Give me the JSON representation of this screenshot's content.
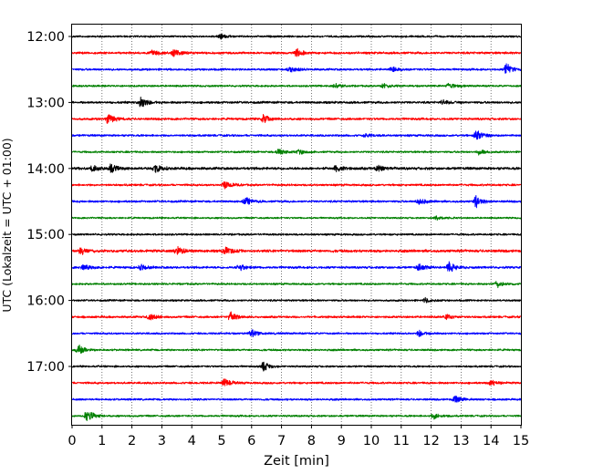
{
  "chart_data": {
    "type": "line",
    "title": "",
    "xlabel": "Zeit  [min]",
    "ylabel": "UTC (Lokalzeit = UTC + 01:00)",
    "xlim": [
      0,
      15
    ],
    "x_ticks": [
      0,
      1,
      2,
      3,
      4,
      5,
      6,
      7,
      8,
      9,
      10,
      11,
      12,
      13,
      14,
      15
    ],
    "x_tick_labels": [
      "0",
      "1",
      "2",
      "3",
      "4",
      "5",
      "6",
      "7",
      "8",
      "9",
      "10",
      "11",
      "12",
      "13",
      "14",
      "15"
    ],
    "y_tick_labels": [
      "12:00",
      "13:00",
      "14:00",
      "15:00",
      "16:00",
      "17:00"
    ],
    "y_tick_rows": [
      0,
      4,
      8,
      12,
      16,
      20
    ],
    "grid": "vertical dotted at each minute",
    "trace_interval_minutes": 15,
    "colors": [
      "#000000",
      "#ff0000",
      "#0000ff",
      "#008000"
    ],
    "series": [
      {
        "name": "12:00",
        "color": "#000000",
        "amp": 1.0,
        "events": [
          {
            "t": 4.95,
            "a": 1.0
          }
        ]
      },
      {
        "name": "12:15",
        "color": "#ff0000",
        "amp": 1.2,
        "events": [
          {
            "t": 2.7,
            "a": 1.2
          },
          {
            "t": 3.4,
            "a": 1.8
          },
          {
            "t": 7.5,
            "a": 1.6
          }
        ]
      },
      {
        "name": "12:30",
        "color": "#0000ff",
        "amp": 1.1,
        "events": [
          {
            "t": 7.3,
            "a": 1.2
          },
          {
            "t": 10.7,
            "a": 1.1
          },
          {
            "t": 14.5,
            "a": 2.6
          }
        ]
      },
      {
        "name": "12:45",
        "color": "#008000",
        "amp": 1.0,
        "events": [
          {
            "t": 8.8,
            "a": 0.9
          },
          {
            "t": 10.4,
            "a": 1.0
          },
          {
            "t": 12.6,
            "a": 1.1
          }
        ]
      },
      {
        "name": "13:00",
        "color": "#000000",
        "amp": 1.2,
        "events": [
          {
            "t": 2.3,
            "a": 2.4
          },
          {
            "t": 12.4,
            "a": 1.0
          }
        ]
      },
      {
        "name": "13:15",
        "color": "#ff0000",
        "amp": 1.2,
        "events": [
          {
            "t": 1.2,
            "a": 1.9
          },
          {
            "t": 6.4,
            "a": 1.6
          }
        ]
      },
      {
        "name": "13:30",
        "color": "#0000ff",
        "amp": 1.1,
        "events": [
          {
            "t": 13.5,
            "a": 2.5
          },
          {
            "t": 9.8,
            "a": 0.7
          }
        ]
      },
      {
        "name": "13:45",
        "color": "#008000",
        "amp": 1.0,
        "events": [
          {
            "t": 6.9,
            "a": 1.4
          },
          {
            "t": 7.6,
            "a": 0.9
          },
          {
            "t": 13.6,
            "a": 0.9
          }
        ]
      },
      {
        "name": "14:00",
        "color": "#000000",
        "amp": 1.4,
        "events": [
          {
            "t": 0.7,
            "a": 1.3
          },
          {
            "t": 1.3,
            "a": 1.5
          },
          {
            "t": 2.8,
            "a": 1.6
          },
          {
            "t": 8.8,
            "a": 1.2
          },
          {
            "t": 10.2,
            "a": 1.4
          }
        ]
      },
      {
        "name": "14:15",
        "color": "#ff0000",
        "amp": 1.1,
        "events": [
          {
            "t": 5.1,
            "a": 1.7
          }
        ]
      },
      {
        "name": "14:30",
        "color": "#0000ff",
        "amp": 1.1,
        "events": [
          {
            "t": 5.8,
            "a": 1.5
          },
          {
            "t": 11.6,
            "a": 1.3
          },
          {
            "t": 13.5,
            "a": 2.2
          }
        ]
      },
      {
        "name": "14:45",
        "color": "#008000",
        "amp": 0.9,
        "events": [
          {
            "t": 12.2,
            "a": 1.0
          }
        ]
      },
      {
        "name": "15:00",
        "color": "#000000",
        "amp": 1.0,
        "events": []
      },
      {
        "name": "15:15",
        "color": "#ff0000",
        "amp": 1.4,
        "events": [
          {
            "t": 0.3,
            "a": 1.5
          },
          {
            "t": 3.5,
            "a": 1.9
          },
          {
            "t": 5.1,
            "a": 1.8
          }
        ]
      },
      {
        "name": "15:30",
        "color": "#0000ff",
        "amp": 1.2,
        "events": [
          {
            "t": 0.4,
            "a": 1.3
          },
          {
            "t": 2.3,
            "a": 1.1
          },
          {
            "t": 5.6,
            "a": 1.4
          },
          {
            "t": 11.6,
            "a": 1.5
          },
          {
            "t": 12.6,
            "a": 2.0
          }
        ]
      },
      {
        "name": "15:45",
        "color": "#008000",
        "amp": 1.0,
        "events": [
          {
            "t": 14.2,
            "a": 1.2
          }
        ]
      },
      {
        "name": "16:00",
        "color": "#000000",
        "amp": 1.0,
        "events": [
          {
            "t": 11.8,
            "a": 0.9
          }
        ]
      },
      {
        "name": "16:15",
        "color": "#ff0000",
        "amp": 1.1,
        "events": [
          {
            "t": 2.6,
            "a": 1.7
          },
          {
            "t": 5.3,
            "a": 2.0
          },
          {
            "t": 12.5,
            "a": 1.0
          }
        ]
      },
      {
        "name": "16:30",
        "color": "#0000ff",
        "amp": 1.0,
        "events": [
          {
            "t": 6.0,
            "a": 1.4
          },
          {
            "t": 11.6,
            "a": 1.3
          }
        ]
      },
      {
        "name": "16:45",
        "color": "#008000",
        "amp": 1.0,
        "events": [
          {
            "t": 0.2,
            "a": 2.1
          }
        ]
      },
      {
        "name": "17:00",
        "color": "#000000",
        "amp": 1.0,
        "events": [
          {
            "t": 6.4,
            "a": 1.8
          }
        ]
      },
      {
        "name": "17:15",
        "color": "#ff0000",
        "amp": 1.1,
        "events": [
          {
            "t": 5.1,
            "a": 1.8
          },
          {
            "t": 14.0,
            "a": 1.0
          }
        ]
      },
      {
        "name": "17:30",
        "color": "#0000ff",
        "amp": 1.0,
        "events": [
          {
            "t": 12.8,
            "a": 1.7
          }
        ]
      },
      {
        "name": "17:45",
        "color": "#008000",
        "amp": 1.0,
        "events": [
          {
            "t": 0.5,
            "a": 2.6
          },
          {
            "t": 12.1,
            "a": 1.1
          }
        ]
      }
    ]
  }
}
